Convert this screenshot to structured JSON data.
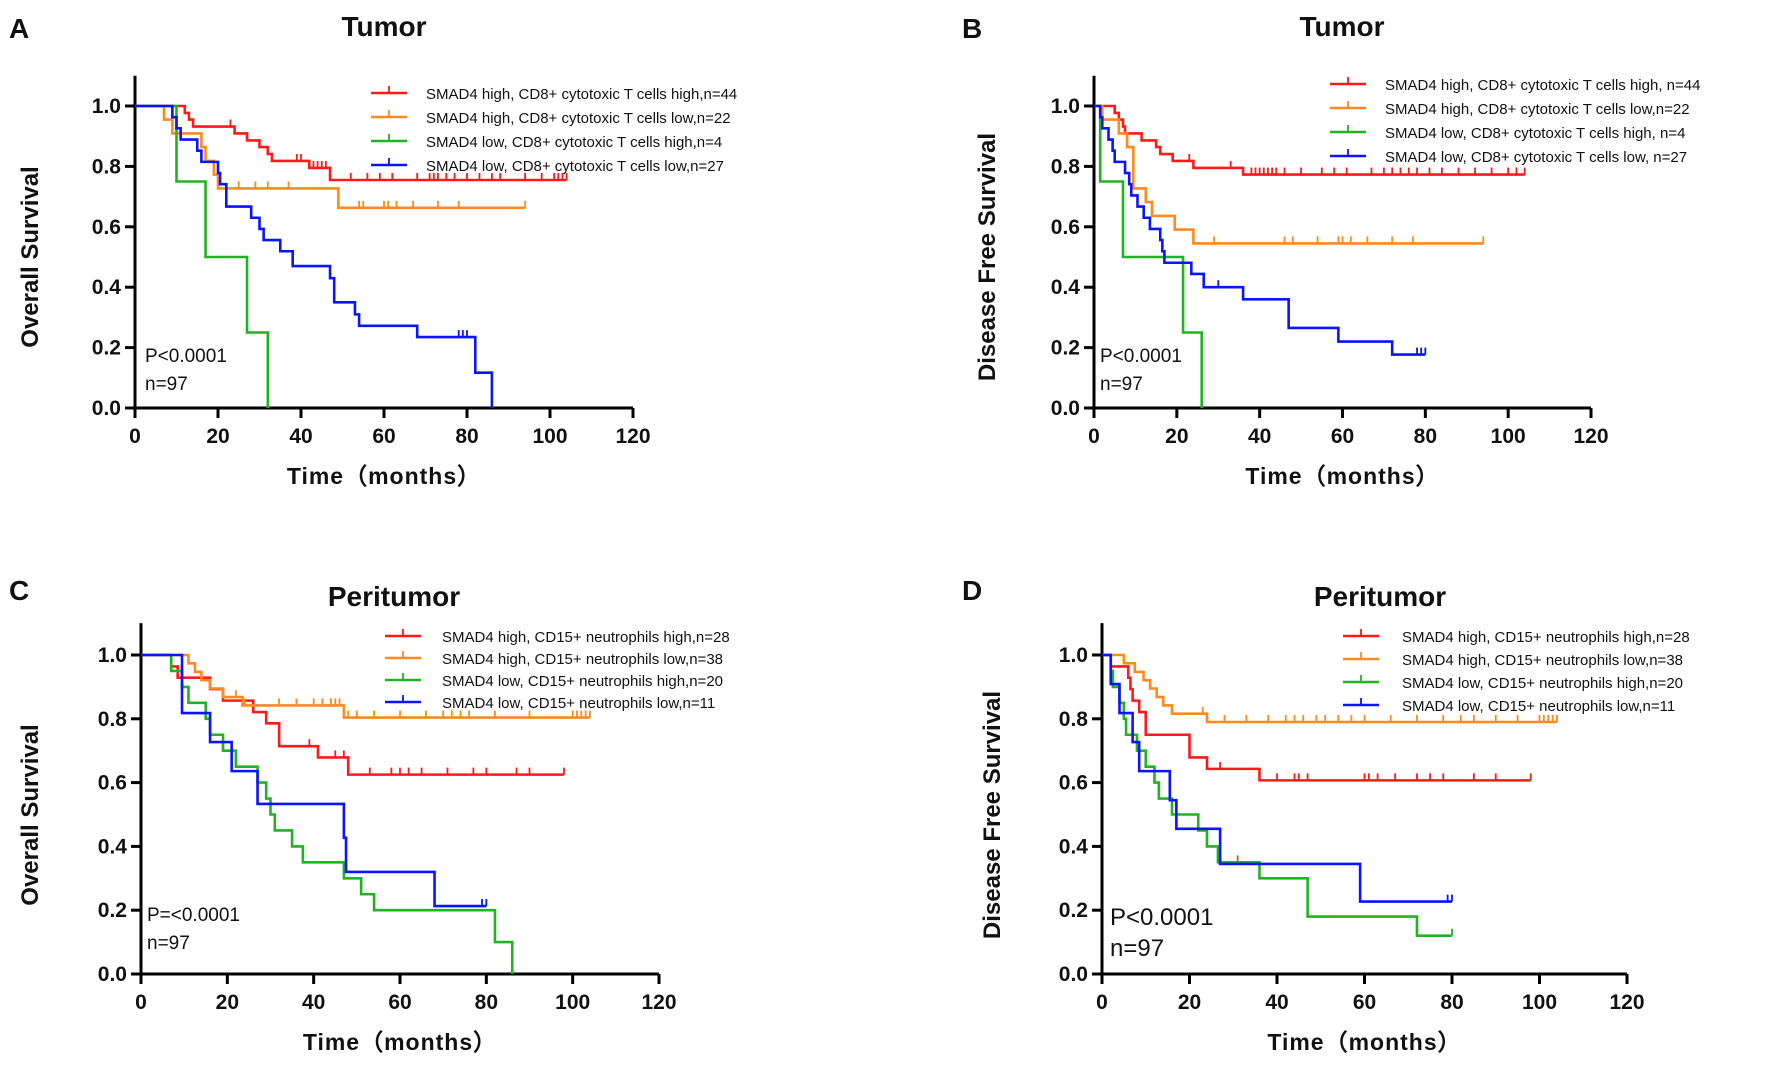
{
  "colors": {
    "red": "#ff1a1a",
    "orange": "#ff8a1f",
    "green": "#22b322",
    "blue": "#0a14ff"
  },
  "chart_data": [
    {
      "panel_label": "A",
      "type": "line",
      "title": "Tumor",
      "xlabel": "Time（months）",
      "ylabel": "Overall Survival",
      "xlim": [
        0,
        120
      ],
      "ylim": [
        0,
        1.1
      ],
      "xticks": [
        "0",
        "20",
        "40",
        "60",
        "80",
        "100",
        "120"
      ],
      "yticks": [
        "0.0",
        "0.2",
        "0.4",
        "0.6",
        "0.8",
        "1.0"
      ],
      "p_text": "P<0.0001",
      "n_text": "n=97",
      "series": [
        {
          "name": "SMAD4 high,  CD8+ cytotoxic T cells high,n=44",
          "color": "red",
          "end": 104,
          "steps": [
            [
              12,
              0.977
            ],
            [
              13,
              0.955
            ],
            [
              14,
              0.932
            ],
            [
              24,
              0.909
            ],
            [
              27,
              0.886
            ],
            [
              30,
              0.864
            ],
            [
              32,
              0.841
            ],
            [
              33,
              0.818
            ],
            [
              42,
              0.795
            ],
            [
              47,
              0.755
            ]
          ],
          "censors": [
            23,
            39,
            40,
            42,
            43,
            44,
            45,
            46,
            52,
            56,
            59,
            62,
            68,
            71,
            72,
            73,
            75,
            77,
            80,
            83,
            86,
            88,
            94,
            98,
            101,
            102,
            103,
            104
          ]
        },
        {
          "name": "SMAD4 high,  CD8+ cytotoxic T cells low,n=22",
          "color": "orange",
          "end": 94,
          "steps": [
            [
              7,
              0.955
            ],
            [
              9,
              0.909
            ],
            [
              16,
              0.864
            ],
            [
              17,
              0.818
            ],
            [
              19,
              0.773
            ],
            [
              20,
              0.727
            ],
            [
              49,
              0.663
            ]
          ],
          "censors": [
            25,
            29,
            32,
            37,
            54,
            55,
            60,
            61,
            63,
            67,
            73,
            78,
            94
          ]
        },
        {
          "name": "SMAD4 low,  CD8+ cytotoxic T cells high,n=4",
          "color": "green",
          "end": 32,
          "steps": [
            [
              10,
              0.75
            ],
            [
              17,
              0.5
            ],
            [
              27,
              0.25
            ],
            [
              32,
              0
            ]
          ],
          "censors": []
        },
        {
          "name": "SMAD4 low,  CD8+ cytotoxic T cells  low,n=27",
          "color": "blue",
          "end": 86,
          "steps": [
            [
              9,
              0.963
            ],
            [
              10,
              0.926
            ],
            [
              11,
              0.889
            ],
            [
              15,
              0.852
            ],
            [
              16,
              0.815
            ],
            [
              20,
              0.778
            ],
            [
              20.5,
              0.741
            ],
            [
              22,
              0.667
            ],
            [
              28,
              0.63
            ],
            [
              30,
              0.593
            ],
            [
              31,
              0.556
            ],
            [
              35,
              0.519
            ],
            [
              38,
              0.47
            ],
            [
              47,
              0.43
            ],
            [
              48,
              0.35
            ],
            [
              53,
              0.31
            ],
            [
              54,
              0.272
            ],
            [
              68,
              0.235
            ],
            [
              82,
              0.117
            ],
            [
              86,
              0
            ]
          ],
          "censors": [
            78,
            79,
            80
          ]
        }
      ]
    },
    {
      "panel_label": "B",
      "type": "line",
      "title": "Tumor",
      "xlabel": "Time（months）",
      "ylabel": "Disease Free Survival",
      "xlim": [
        0,
        120
      ],
      "ylim": [
        0,
        1.1
      ],
      "xticks": [
        "0",
        "20",
        "40",
        "60",
        "80",
        "100",
        "120"
      ],
      "yticks": [
        "0.0",
        "0.2",
        "0.4",
        "0.6",
        "0.8",
        "1.0"
      ],
      "p_text": "P<0.0001",
      "n_text": "n=97",
      "series": [
        {
          "name": "SMAD4 high,  CD8+ cytotoxic T cells high, n=44",
          "color": "red",
          "end": 104,
          "steps": [
            [
              5,
              0.977
            ],
            [
              6,
              0.955
            ],
            [
              7,
              0.932
            ],
            [
              7.5,
              0.909
            ],
            [
              11.5,
              0.886
            ],
            [
              15,
              0.864
            ],
            [
              16,
              0.841
            ],
            [
              19,
              0.818
            ],
            [
              24,
              0.795
            ],
            [
              36,
              0.773
            ]
          ],
          "censors": [
            23,
            33,
            38,
            39,
            40,
            41,
            42,
            43,
            44,
            46,
            50,
            55,
            58,
            61,
            67,
            70,
            72,
            74,
            76,
            78,
            81,
            84,
            88,
            92,
            96,
            100,
            102,
            104
          ]
        },
        {
          "name": "SMAD4 high,  CD8+ cytotoxic T cells low,n=22",
          "color": "orange",
          "end": 94,
          "steps": [
            [
              2,
              0.955
            ],
            [
              6,
              0.909
            ],
            [
              8,
              0.864
            ],
            [
              9.5,
              0.727
            ],
            [
              12.5,
              0.682
            ],
            [
              14,
              0.636
            ],
            [
              19.5,
              0.591
            ],
            [
              24,
              0.545
            ]
          ],
          "censors": [
            29,
            46,
            48,
            54,
            59,
            60,
            62,
            66,
            72,
            77,
            94
          ]
        },
        {
          "name": "SMAD4 low,  CD8+ cytotoxic T cells high, n=4",
          "color": "green",
          "end": 26,
          "steps": [
            [
              1.5,
              0.75
            ],
            [
              7,
              0.5
            ],
            [
              21.5,
              0.25
            ],
            [
              26,
              0
            ]
          ],
          "censors": []
        },
        {
          "name": "SMAD4 low,  CD8+ cytotoxic T cells low, n=27",
          "color": "blue",
          "end": 80,
          "steps": [
            [
              1.5,
              0.963
            ],
            [
              2,
              0.926
            ],
            [
              3.5,
              0.889
            ],
            [
              4.5,
              0.852
            ],
            [
              5,
              0.815
            ],
            [
              7.5,
              0.778
            ],
            [
              8.5,
              0.741
            ],
            [
              9,
              0.704
            ],
            [
              10.5,
              0.667
            ],
            [
              12,
              0.63
            ],
            [
              13.5,
              0.593
            ],
            [
              16,
              0.556
            ],
            [
              16.5,
              0.519
            ],
            [
              17,
              0.481
            ],
            [
              23.5,
              0.444
            ],
            [
              26.5,
              0.4
            ],
            [
              36,
              0.36
            ],
            [
              47,
              0.265
            ],
            [
              59,
              0.22
            ],
            [
              72,
              0.177
            ]
          ],
          "censors": [
            30,
            78,
            79,
            80
          ]
        }
      ]
    },
    {
      "panel_label": "C",
      "type": "line",
      "title": "Peritumor",
      "xlabel": "Time（months）",
      "ylabel": "Overall Survival",
      "xlim": [
        0,
        120
      ],
      "ylim": [
        0,
        1.1
      ],
      "xticks": [
        "0",
        "20",
        "40",
        "60",
        "80",
        "100",
        "120"
      ],
      "yticks": [
        "0.0",
        "0.2",
        "0.4",
        "0.6",
        "0.8",
        "1.0"
      ],
      "p_text": "P=<0.0001",
      "n_text": "n=97",
      "series": [
        {
          "name": "SMAD4 high,  CD15+ neutrophils  high,n=28",
          "color": "red",
          "end": 98,
          "steps": [
            [
              7,
              0.964
            ],
            [
              8.5,
              0.929
            ],
            [
              16,
              0.893
            ],
            [
              19,
              0.857
            ],
            [
              26,
              0.821
            ],
            [
              29,
              0.786
            ],
            [
              32,
              0.714
            ],
            [
              41,
              0.679
            ],
            [
              48,
              0.625
            ]
          ],
          "censors": [
            39,
            45,
            47,
            53,
            58,
            60,
            62,
            65,
            71,
            77,
            80,
            87,
            90,
            98
          ]
        },
        {
          "name": "SMAD4 high,  CD15+ neutrophils low,n=38",
          "color": "orange",
          "end": 104,
          "steps": [
            [
              11,
              0.974
            ],
            [
              12.5,
              0.947
            ],
            [
              14,
              0.921
            ],
            [
              16,
              0.895
            ],
            [
              19,
              0.868
            ],
            [
              23.5,
              0.842
            ],
            [
              47,
              0.804
            ]
          ],
          "censors": [
            22,
            24,
            32,
            36,
            40,
            42,
            44,
            45,
            46,
            48,
            50,
            54,
            60,
            66,
            70,
            72,
            74,
            76,
            82,
            90,
            100,
            101,
            102,
            103,
            104
          ]
        },
        {
          "name": "SMAD4 low,  CD15+ neutrophils high,n=20",
          "color": "green",
          "end": 86,
          "steps": [
            [
              7,
              0.95
            ],
            [
              9.5,
              0.9
            ],
            [
              11,
              0.85
            ],
            [
              15,
              0.8
            ],
            [
              16,
              0.75
            ],
            [
              19,
              0.7
            ],
            [
              22,
              0.65
            ],
            [
              27,
              0.6
            ],
            [
              29,
              0.55
            ],
            [
              30,
              0.5
            ],
            [
              31,
              0.45
            ],
            [
              35,
              0.4
            ],
            [
              37.5,
              0.35
            ],
            [
              47,
              0.3
            ],
            [
              51,
              0.25
            ],
            [
              54,
              0.2
            ],
            [
              82,
              0.1
            ],
            [
              86,
              0
            ]
          ],
          "censors": []
        },
        {
          "name": "SMAD4 low,  CD15+ neutrophils low,n=11",
          "color": "blue",
          "end": 80,
          "steps": [
            [
              9.5,
              0.818
            ],
            [
              16,
              0.727
            ],
            [
              21,
              0.636
            ],
            [
              27,
              0.533
            ],
            [
              47,
              0.427
            ],
            [
              47.5,
              0.32
            ],
            [
              68,
              0.213
            ]
          ],
          "censors": [
            79,
            80
          ]
        }
      ]
    },
    {
      "panel_label": "D",
      "type": "line",
      "title": "Peritumor",
      "xlabel": "Time（months）",
      "ylabel": "Disease Free Survival",
      "xlim": [
        0,
        120
      ],
      "ylim": [
        0,
        1.1
      ],
      "xticks": [
        "0",
        "20",
        "40",
        "60",
        "80",
        "100",
        "120"
      ],
      "yticks": [
        "0.0",
        "0.2",
        "0.4",
        "0.6",
        "0.8",
        "1.0"
      ],
      "p_text": "P<0.0001",
      "n_text": "n=97",
      "series": [
        {
          "name": "SMAD4 high,  CD15+ neutrophils high,n=28",
          "color": "red",
          "end": 98,
          "steps": [
            [
              2,
              0.964
            ],
            [
              6,
              0.929
            ],
            [
              6.5,
              0.893
            ],
            [
              7,
              0.857
            ],
            [
              8.5,
              0.821
            ],
            [
              10,
              0.75
            ],
            [
              20,
              0.679
            ],
            [
              24,
              0.643
            ],
            [
              36,
              0.607
            ]
          ],
          "censors": [
            27,
            40,
            44,
            45,
            47,
            60,
            61,
            63,
            67,
            72,
            75,
            78,
            85,
            90,
            98
          ]
        },
        {
          "name": "SMAD4 high,  CD15+ neutrophils low,n=38",
          "color": "orange",
          "end": 104,
          "steps": [
            [
              5,
              0.974
            ],
            [
              7.5,
              0.947
            ],
            [
              9.5,
              0.921
            ],
            [
              11,
              0.895
            ],
            [
              12.5,
              0.868
            ],
            [
              14,
              0.842
            ],
            [
              16,
              0.816
            ],
            [
              24,
              0.79
            ]
          ],
          "censors": [
            23,
            28,
            33,
            38,
            42,
            44,
            46,
            49,
            51,
            54,
            57,
            60,
            66,
            72,
            78,
            82,
            85,
            90,
            95,
            100,
            101,
            102,
            103,
            104
          ]
        },
        {
          "name": "SMAD4 low,  CD15+ neutrophils high,n=20",
          "color": "green",
          "end": 80,
          "steps": [
            [
              2,
              0.95
            ],
            [
              2.5,
              0.9
            ],
            [
              4,
              0.85
            ],
            [
              5,
              0.8
            ],
            [
              5.5,
              0.75
            ],
            [
              8,
              0.7
            ],
            [
              10,
              0.65
            ],
            [
              12,
              0.6
            ],
            [
              13,
              0.55
            ],
            [
              16,
              0.5
            ],
            [
              22,
              0.45
            ],
            [
              24,
              0.4
            ],
            [
              26.5,
              0.35
            ],
            [
              36,
              0.3
            ],
            [
              47,
              0.18
            ],
            [
              72,
              0.12
            ]
          ],
          "censors": [
            31,
            80
          ]
        },
        {
          "name": "SMAD4 low,  CD15+ neutrophils low,n=11",
          "color": "blue",
          "end": 80,
          "steps": [
            [
              2,
              0.909
            ],
            [
              4,
              0.818
            ],
            [
              7,
              0.727
            ],
            [
              8.5,
              0.636
            ],
            [
              15.5,
              0.545
            ],
            [
              17,
              0.455
            ],
            [
              27,
              0.345
            ],
            [
              59,
              0.227
            ]
          ],
          "censors": [
            79,
            80
          ]
        }
      ]
    }
  ]
}
